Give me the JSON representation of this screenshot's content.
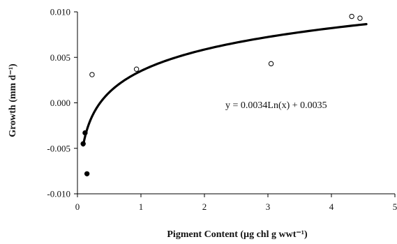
{
  "chart_data": {
    "type": "scatter",
    "xlabel": "Pigment Content (µg chl g wwt⁻¹)",
    "ylabel": "Growth (mm d⁻¹)",
    "xlim": [
      0,
      5
    ],
    "ylim": [
      -0.01,
      0.01
    ],
    "x_ticks": [
      "0",
      "1",
      "2",
      "3",
      "4",
      "5"
    ],
    "y_ticks": [
      "-0.010",
      "-0.005",
      "0.000",
      "0.005",
      "0.010"
    ],
    "grid": false,
    "legend": "none",
    "series": [
      {
        "marker": "open-circle",
        "points": [
          {
            "x": 0.23,
            "y": 0.0031
          },
          {
            "x": 0.93,
            "y": 0.0037
          },
          {
            "x": 3.05,
            "y": 0.0043
          },
          {
            "x": 4.32,
            "y": 0.0095
          },
          {
            "x": 4.45,
            "y": 0.0093
          }
        ]
      },
      {
        "marker": "filled-circle",
        "points": [
          {
            "x": 0.09,
            "y": -0.0045
          },
          {
            "x": 0.12,
            "y": -0.0033
          },
          {
            "x": 0.15,
            "y": -0.0078
          }
        ]
      }
    ],
    "trendline": {
      "type": "logarithmic",
      "a": 0.0034,
      "b": 0.0035,
      "x_range": [
        0.09,
        4.55
      ],
      "equation_label": "y = 0.0034Ln(x) + 0.0035"
    },
    "colors": {
      "axis": "#000000",
      "marker": "#000000",
      "trendline": "#000000"
    }
  }
}
